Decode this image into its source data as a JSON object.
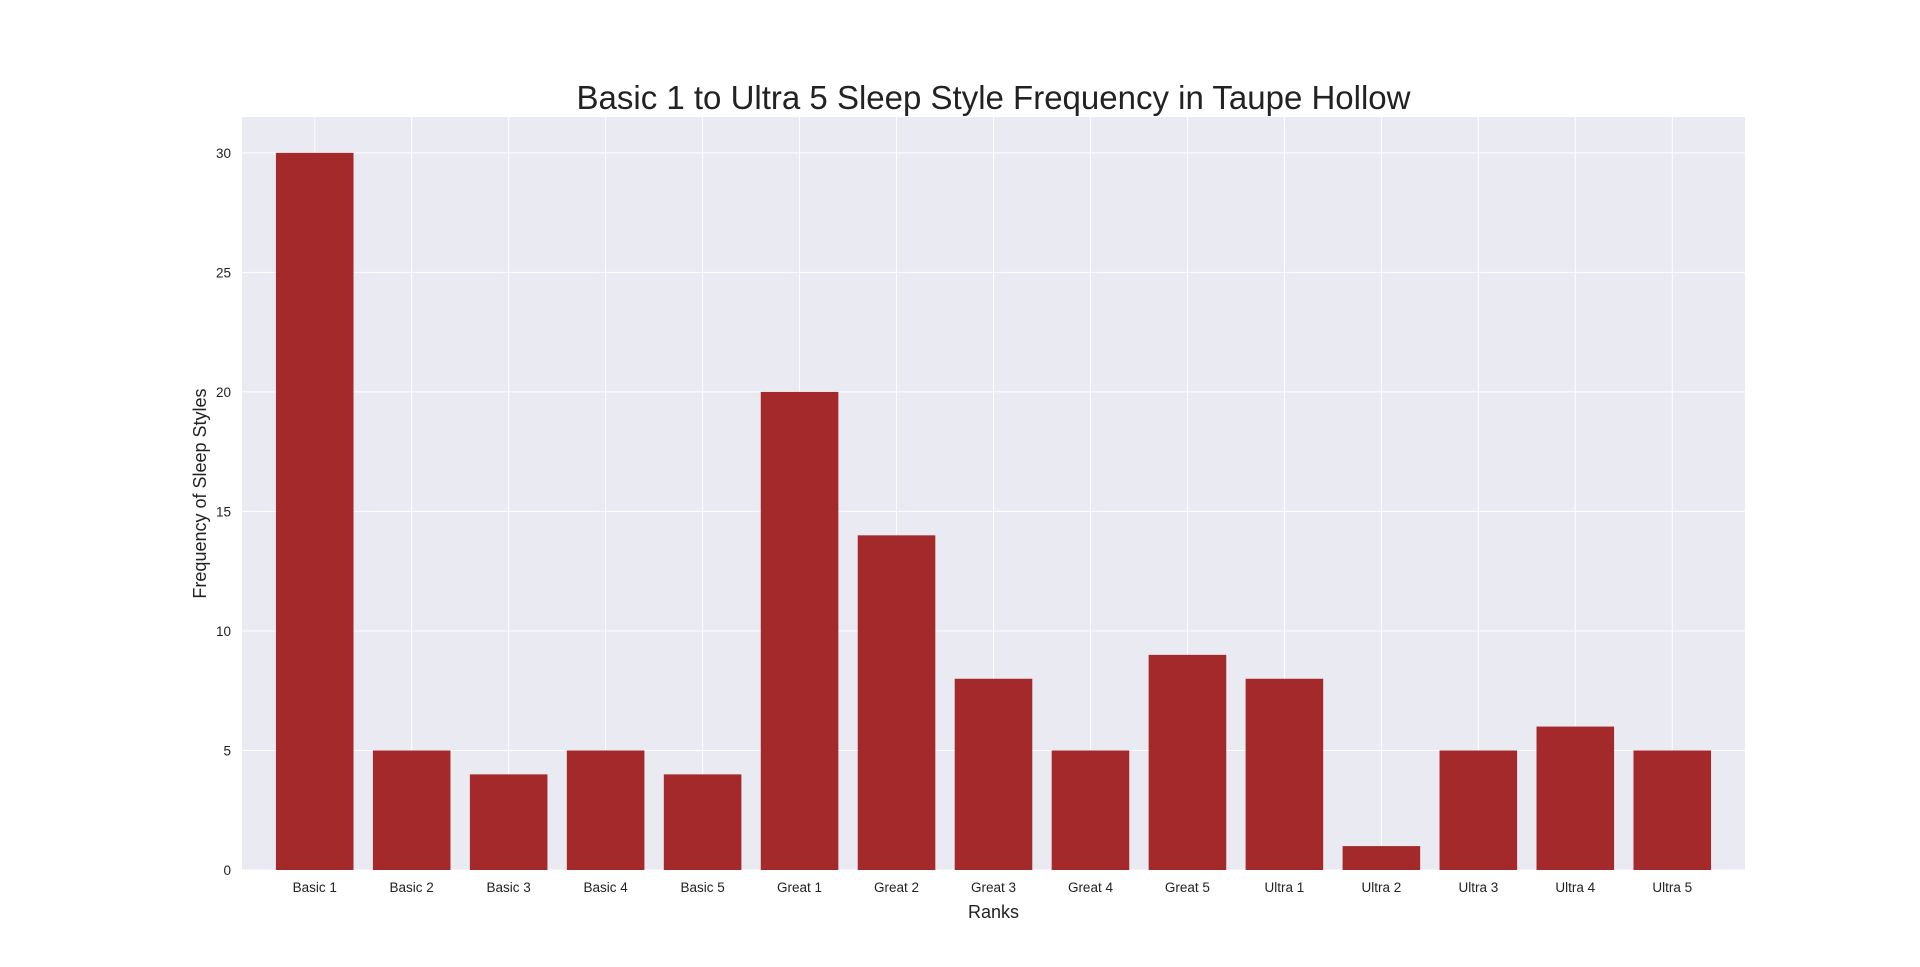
{
  "chart_data": {
    "type": "bar",
    "title": "Basic 1 to Ultra 5 Sleep Style Frequency in Taupe Hollow",
    "xlabel": "Ranks",
    "ylabel": "Frequency of Sleep Styles",
    "categories": [
      "Basic 1",
      "Basic 2",
      "Basic 3",
      "Basic 4",
      "Basic 5",
      "Great 1",
      "Great 2",
      "Great 3",
      "Great 4",
      "Great 5",
      "Ultra 1",
      "Ultra 2",
      "Ultra 3",
      "Ultra 4",
      "Ultra 5"
    ],
    "values": [
      30,
      5,
      4,
      5,
      4,
      20,
      14,
      8,
      5,
      9,
      8,
      1,
      5,
      6,
      5
    ],
    "yticks": [
      0,
      5,
      10,
      15,
      20,
      25,
      30
    ],
    "ylim": [
      0,
      31.5
    ],
    "grid": true,
    "colors": {
      "bar": "#a3292a",
      "plot_background": "#eaeaf2",
      "grid": "#ffffff"
    }
  }
}
